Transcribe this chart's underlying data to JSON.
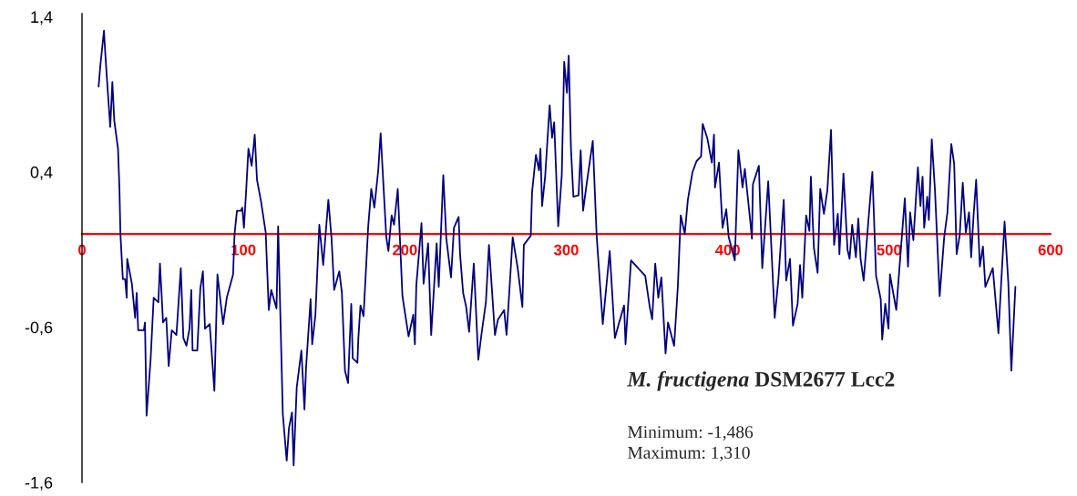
{
  "chart_data": {
    "type": "line",
    "x": [
      10.3,
      11.3,
      13.6,
      14.5,
      16.1,
      17.5,
      18.8,
      20,
      22.3,
      23.2,
      23.8,
      25.3,
      26.7,
      27.7,
      28,
      30.9,
      32.9,
      33.9,
      34.8,
      38.3,
      39,
      40,
      42.5,
      44.4,
      47.3,
      48.3,
      50.2,
      52.2,
      53.7,
      55.6,
      58.5,
      61.2,
      62.8,
      64.7,
      66.6,
      67.7,
      68.5,
      71.4,
      73.3,
      74.9,
      76.2,
      79.1,
      82,
      83.9,
      87.4,
      89.7,
      93.6,
      94.5,
      96,
      98.4,
      99.3,
      100.3,
      101.8,
      103.1,
      105.1,
      107,
      108.4,
      110.9,
      113.8,
      115.7,
      117.2,
      120.5,
      121.5,
      124.4,
      126.8,
      128.2,
      130.1,
      131.1,
      133,
      135.9,
      137.8,
      138.8,
      141.6,
      142.6,
      144.6,
      147,
      149.4,
      152.6,
      154.6,
      156.2,
      159.4,
      161,
      162.9,
      164.8,
      166.8,
      167.7,
      170.6,
      171.2,
      172.5,
      174.4,
      177.3,
      179.2,
      181.1,
      183.5,
      185,
      186.6,
      188.5,
      189.8,
      191.8,
      193.3,
      195.6,
      198.5,
      200.4,
      202.3,
      205.2,
      206.2,
      207.1,
      210.3,
      211.6,
      214.4,
      216.3,
      219.7,
      221,
      223.8,
      225.7,
      228.6,
      230.4,
      233.3,
      234.2,
      236.1,
      238,
      239.8,
      242.7,
      245.5,
      247.4,
      250.2,
      252.1,
      255.8,
      257.7,
      261.5,
      263,
      264.3,
      266.8,
      269.9,
      272.8,
      273.7,
      278,
      278.8,
      281.2,
      283.1,
      284,
      285,
      286.9,
      289.7,
      291.2,
      292.5,
      295,
      297.2,
      298.7,
      300.4,
      301.5,
      302.9,
      304.4,
      307.6,
      308.9,
      310.4,
      312.7,
      316.4,
      318.8,
      322.6,
      326.9,
      330.1,
      332.5,
      335.8,
      336.7,
      340.1,
      348.9,
      351.7,
      353.2,
      355.1,
      357,
      358.9,
      361.5,
      363,
      366.8,
      369.1,
      370.9,
      373.4,
      375.3,
      378.2,
      380.7,
      383.5,
      384.5,
      387.3,
      390.2,
      391.5,
      392.1,
      394.6,
      396.8,
      399.1,
      400.6,
      404.4,
      406.6,
      409.2,
      410.6,
      414,
      415,
      415.6,
      419.3,
      421.4,
      425.1,
      429.1,
      431.4,
      434.7,
      436.2,
      438.6,
      440.4,
      443.3,
      444.8,
      446.2,
      448.6,
      450.6,
      451.5,
      453.4,
      455.7,
      457.3,
      459.6,
      461.7,
      464,
      465.9,
      468.2,
      469.2,
      471.7,
      474.2,
      475.5,
      477.1,
      479.4,
      480.9,
      482.3,
      484.2,
      487.1,
      489.6,
      491.9,
      494.8,
      495.7,
      497.6,
      499.6,
      500.5,
      504.4,
      506.3,
      509.7,
      511.7,
      513,
      515,
      517.8,
      519.4,
      520.7,
      521.7,
      523.6,
      524.6,
      526.4,
      528.4,
      531.3,
      534.1,
      536.1,
      538.5,
      540.3,
      541.8,
      543.7,
      545.6,
      547.5,
      549.5,
      550.8,
      552.3,
      553.9,
      556.2,
      558.1,
      559.6,
      564.2,
      567.7,
      571.5,
      573.8,
      575.7,
      578.2
    ],
    "series": [
      {
        "color": "#000080",
        "values": [
          0.95,
          1.08,
          1.31,
          1.15,
          0.9,
          0.69,
          0.98,
          0.73,
          0.55,
          0.29,
          0,
          -0.29,
          -0.29,
          -0.41,
          -0.16,
          -0.32,
          -0.54,
          -0.38,
          -0.62,
          -0.62,
          -0.57,
          -1.17,
          -0.81,
          -0.41,
          -0.44,
          -0.19,
          -0.57,
          -0.54,
          -0.85,
          -0.62,
          -0.65,
          -0.22,
          -0.67,
          -0.72,
          -0.61,
          -0.36,
          -0.75,
          -0.75,
          -0.35,
          -0.24,
          -0.61,
          -0.58,
          -1.01,
          -0.26,
          -0.58,
          -0.41,
          -0.26,
          0,
          0.15,
          0.15,
          0.17,
          0.04,
          0.3,
          0.55,
          0.44,
          0.64,
          0.35,
          0.21,
          0.01,
          -0.49,
          -0.36,
          -0.48,
          0.05,
          -1.16,
          -1.46,
          -1.25,
          -1.15,
          -1.49,
          -0.99,
          -0.75,
          -1.13,
          -0.86,
          -0.42,
          -0.71,
          -0.52,
          0.06,
          -0.2,
          0.22,
          -0.03,
          -0.36,
          -0.24,
          -0.38,
          -0.88,
          -0.96,
          -0.45,
          -0.8,
          -0.83,
          -0.67,
          -0.46,
          -0.53,
          0.05,
          0.29,
          0.17,
          0.41,
          0.65,
          0.34,
          -0.02,
          -0.11,
          0.12,
          0.06,
          0.29,
          -0.4,
          -0.53,
          -0.66,
          -0.52,
          -0.71,
          -0.33,
          0.07,
          -0.32,
          -0.06,
          -0.65,
          -0.06,
          -0.34,
          0.38,
          -0.03,
          -0.28,
          0.04,
          0.11,
          -0.13,
          -0.38,
          -0.47,
          -0.63,
          -0.19,
          -0.81,
          -0.65,
          -0.44,
          -0.07,
          -0.65,
          -0.55,
          -0.49,
          -0.65,
          -0.44,
          -0.02,
          -0.22,
          -0.47,
          -0.07,
          -0.01,
          0.27,
          0.51,
          0.41,
          0.55,
          0.18,
          0.37,
          0.83,
          0.62,
          0.72,
          0.05,
          0.38,
          1.11,
          0.91,
          1.15,
          0.55,
          0.24,
          0.25,
          0.54,
          0.15,
          0.33,
          0.6,
          -0.01,
          -0.58,
          -0.11,
          -0.67,
          -0.58,
          -0.46,
          -0.71,
          -0.17,
          -0.27,
          -0.47,
          -0.55,
          -0.19,
          -0.41,
          -0.28,
          -0.77,
          -0.57,
          -0.72,
          -0.34,
          0.12,
          0,
          0.22,
          0.4,
          0.47,
          0.5,
          0.71,
          0.62,
          0.46,
          0.64,
          0.3,
          0.46,
          0.04,
          0.16,
          -0.02,
          -0.17,
          0.54,
          0.3,
          0.42,
          0.08,
          -0.03,
          0.32,
          0.44,
          -0.22,
          0.34,
          -0.54,
          -0.29,
          0.22,
          -0.3,
          -0.16,
          -0.59,
          -0.45,
          -0.2,
          -0.41,
          0.12,
          0.02,
          0.37,
          -0.09,
          -0.25,
          0.29,
          0.13,
          0.28,
          0.67,
          -0.07,
          0.13,
          -0.13,
          0.39,
          -0.1,
          -0.16,
          0.06,
          -0.15,
          0.1,
          -0.16,
          -0.3,
          0.08,
          0.4,
          -0.27,
          -0.42,
          -0.68,
          -0.45,
          -0.61,
          -0.26,
          -0.49,
          -0.23,
          0.23,
          -0.21,
          0.14,
          -0.04,
          0.43,
          0.18,
          0.37,
          0.04,
          0.24,
          0.09,
          0.61,
          0.28,
          -0.4,
          -0.02,
          0.14,
          0.58,
          0.45,
          -0.13,
          -0.01,
          0.33,
          0.01,
          0.14,
          -0.15,
          0.12,
          0.35,
          -0.21,
          -0.08,
          -0.34,
          -0.22,
          -0.64,
          0.08,
          -0.31,
          -0.88,
          -0.34
        ]
      }
    ],
    "xlim": [
      0,
      600
    ],
    "xticks": [
      0,
      100,
      200,
      300,
      400,
      500,
      600
    ],
    "ylim": [
      -1.6,
      1.42
    ],
    "yticks": [
      {
        "value": 1.4,
        "label": "1,4"
      },
      {
        "value": 0.4,
        "label": "0,4"
      },
      {
        "value": -0.6,
        "label": "-0,6"
      },
      {
        "value": -1.6,
        "label": "-1,6"
      }
    ],
    "annotations": [
      "M. fructigena",
      "DSM2677 Lcc2",
      "Minimum: -1,486",
      "Maximum: 1,310"
    ],
    "grid": false,
    "legend": false
  }
}
